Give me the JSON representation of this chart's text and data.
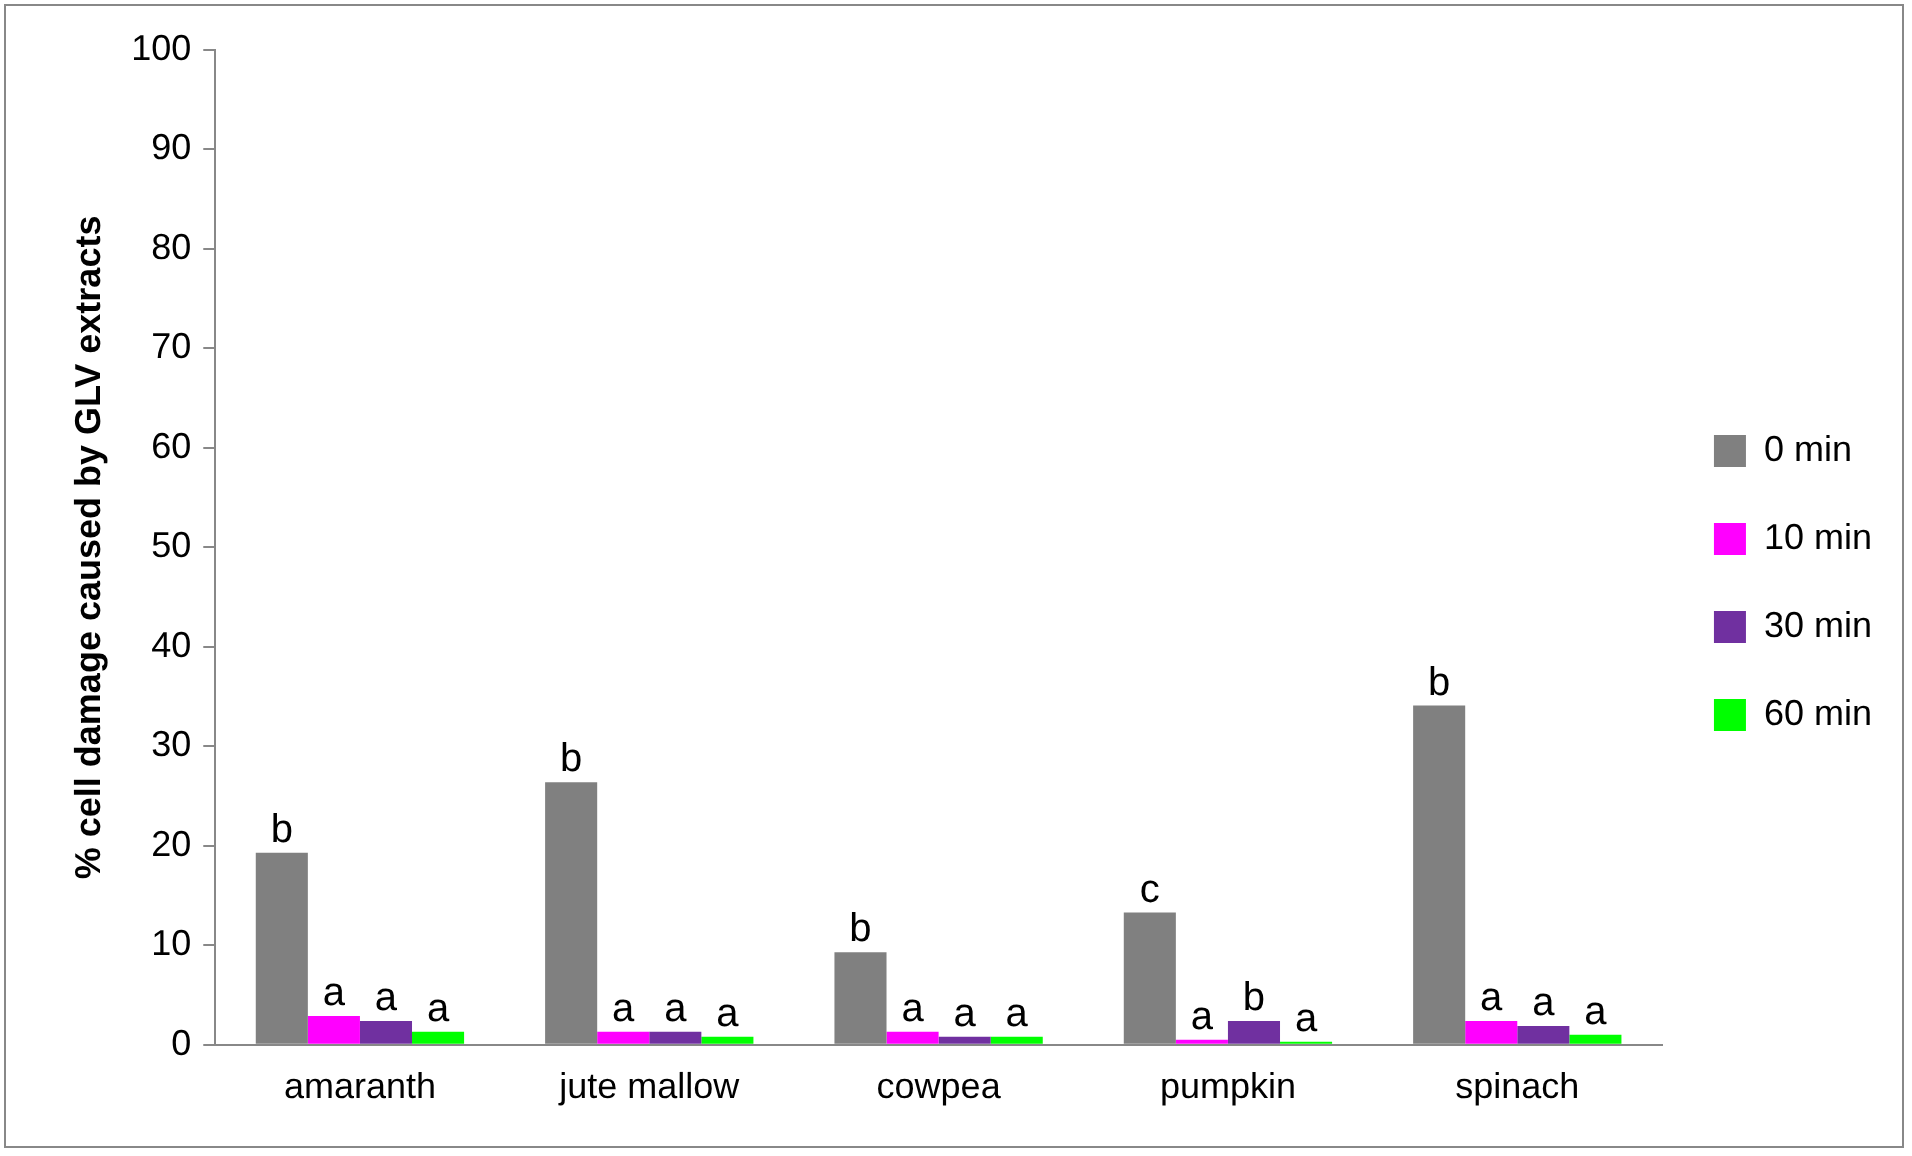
{
  "chart_data": {
    "type": "bar",
    "ylabel": "% cell damage caused by GLV extracts",
    "categories": [
      "amaranth",
      "jute mallow",
      "cowpea",
      "pumpkin",
      "spinach"
    ],
    "series": [
      {
        "name": "0 min",
        "color": "#808080",
        "values": [
          19.3,
          26.4,
          9.3,
          13.3,
          34.1
        ],
        "value_labels": [
          "b",
          "b",
          "b",
          "c",
          "b"
        ]
      },
      {
        "name": "10 min",
        "color": "#ff00ff",
        "values": [
          2.9,
          1.3,
          1.3,
          0.5,
          2.4
        ],
        "value_labels": [
          "a",
          "a",
          "a",
          "a",
          "a"
        ]
      },
      {
        "name": "30 min",
        "color": "#7030a0",
        "values": [
          2.4,
          1.3,
          0.8,
          2.4,
          1.9
        ],
        "value_labels": [
          "a",
          "a",
          "a",
          "b",
          "a"
        ]
      },
      {
        "name": "60 min",
        "color": "#00ff00",
        "values": [
          1.3,
          0.8,
          0.8,
          0.3,
          1.0
        ],
        "value_labels": [
          "a",
          "a",
          "a",
          "a",
          "a"
        ]
      }
    ],
    "ylim": [
      0,
      100
    ],
    "yticks": [
      0,
      10,
      20,
      30,
      40,
      50,
      60,
      70,
      80,
      90,
      100
    ],
    "grid": false,
    "legend": "right"
  }
}
